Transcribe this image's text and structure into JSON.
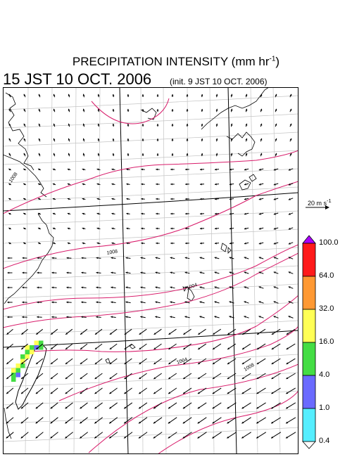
{
  "title": {
    "main": "PRECIPITATION INTENSITY (mm hr",
    "sup": "-1",
    "close": ")",
    "valid_time": "15 JST 10 OCT. 2006",
    "init_time": "(init. 9 JST 10 OCT. 2006)"
  },
  "legend": {
    "reference_vector": "20 m s",
    "reference_vector_sup": "-1",
    "levels": [
      "100.0",
      "64.0",
      "32.0",
      "16.0",
      "4.0",
      "1.0",
      "0.4"
    ],
    "colors": [
      "#aa00ff",
      "#ff1a1a",
      "#ff9933",
      "#ffff55",
      "#44dd44",
      "#6a6aff",
      "#55eeff",
      "#ffffff"
    ]
  },
  "isobars": {
    "labels": [
      "1008",
      "1004",
      "1004",
      "1008",
      "1008"
    ],
    "line_color": "#d81b6a"
  },
  "precip": {
    "cells": [
      {
        "i": 19,
        "j": 18,
        "level": 3
      },
      {
        "i": 20,
        "j": 18,
        "level": 4
      },
      {
        "i": 19,
        "j": 19,
        "level": 4
      },
      {
        "i": 20,
        "j": 19,
        "level": 3
      },
      {
        "i": 19,
        "j": 20,
        "level": 3
      },
      {
        "i": 18,
        "j": 20,
        "level": 4
      },
      {
        "i": 18,
        "j": 21,
        "level": 3
      },
      {
        "i": 18,
        "j": 22,
        "level": 4
      },
      {
        "i": 17,
        "j": 22,
        "level": 3
      },
      {
        "i": 17,
        "j": 23,
        "level": 4
      },
      {
        "i": 16,
        "j": 23,
        "level": 3
      },
      {
        "i": 16,
        "j": 24,
        "level": 4
      },
      {
        "i": 21,
        "j": 17,
        "level": 3
      },
      {
        "i": 22,
        "j": 17,
        "level": 4
      },
      {
        "i": 21,
        "j": 18,
        "level": 5
      },
      {
        "i": 22,
        "j": 18,
        "level": 4
      },
      {
        "i": 17,
        "j": 24,
        "level": 5
      },
      {
        "i": 16,
        "j": 25,
        "level": 4
      }
    ]
  }
}
